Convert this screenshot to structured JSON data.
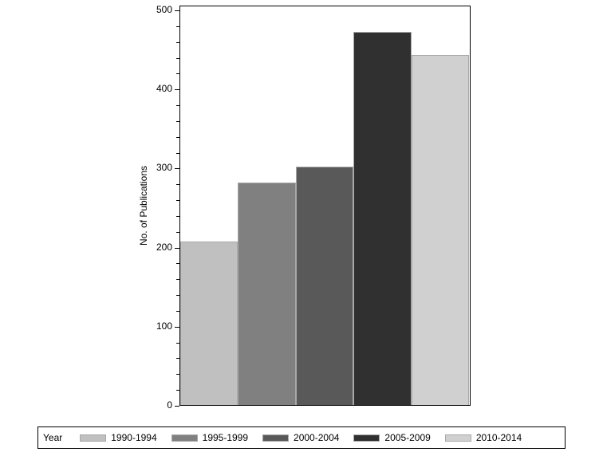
{
  "chart_data": {
    "type": "bar",
    "title": "",
    "xlabel": "",
    "ylabel": "No. of Publications",
    "ylim": [
      0,
      500
    ],
    "yticks": [
      0,
      100,
      200,
      300,
      400,
      500
    ],
    "grid": false,
    "legend_position": "bottom",
    "legend_title": "Year",
    "categories": [
      "1990-1994",
      "1995-1999",
      "2000-2004",
      "2005-2009",
      "2010-2014"
    ],
    "values": [
      207,
      281,
      301,
      472,
      443
    ],
    "colors": [
      "#c0c0c0",
      "#808080",
      "#595959",
      "#303030",
      "#d0d0d0"
    ]
  }
}
